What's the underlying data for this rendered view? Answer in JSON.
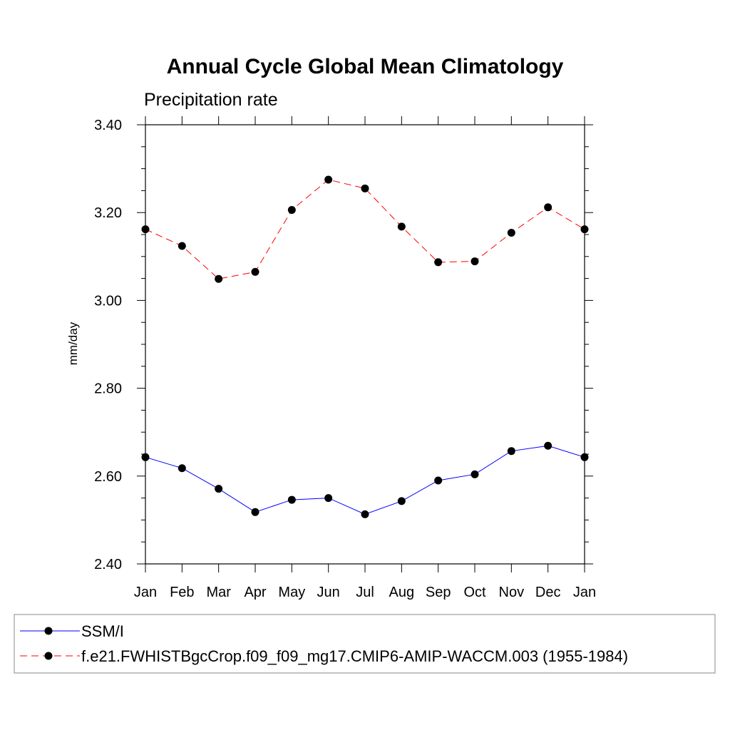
{
  "chart_data": {
    "type": "line",
    "title": "Annual Cycle Global Mean Climatology",
    "subtitle": "Precipitation rate",
    "ylabel": "mm/day",
    "xlabel": "",
    "categories": [
      "Jan",
      "Feb",
      "Mar",
      "Apr",
      "May",
      "Jun",
      "Jul",
      "Aug",
      "Sep",
      "Oct",
      "Nov",
      "Dec",
      "Jan"
    ],
    "ylim": [
      2.4,
      3.4
    ],
    "yticks": [
      "2.40",
      "2.60",
      "2.80",
      "3.00",
      "3.20",
      "3.40"
    ],
    "grid": false,
    "legend_position": "bottom",
    "series": [
      {
        "name": "SSM/I",
        "color": "#0000ff",
        "dash": "solid",
        "values": [
          2.643,
          2.618,
          2.571,
          2.518,
          2.546,
          2.55,
          2.513,
          2.543,
          2.59,
          2.604,
          2.657,
          2.669,
          2.643
        ]
      },
      {
        "name": "f.e21.FWHISTBgcCrop.f09_f09_mg17.CMIP6-AMIP-WACCM.003 (1955-1984)",
        "color": "#ff0000",
        "dash": "dashed",
        "values": [
          3.162,
          3.124,
          3.049,
          3.065,
          3.206,
          3.275,
          3.255,
          3.168,
          3.087,
          3.089,
          3.154,
          3.212,
          3.162
        ]
      }
    ]
  }
}
